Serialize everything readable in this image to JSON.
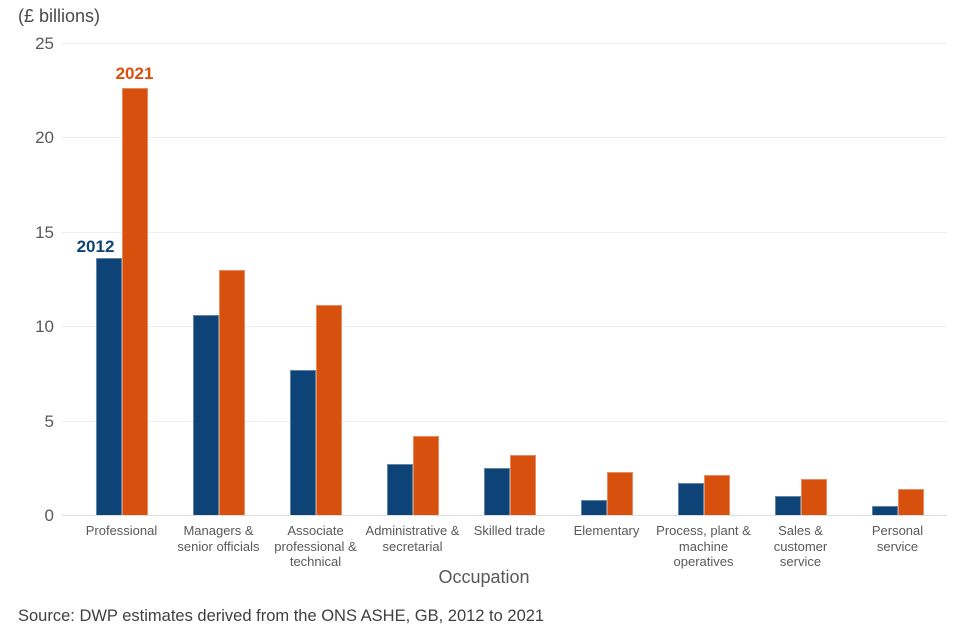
{
  "header": {
    "units_label": "(£ billions)"
  },
  "chart_data": {
    "type": "bar",
    "title": "(£ billions)",
    "xlabel": "Occupation",
    "ylabel": "(£ billions)",
    "ylim": [
      0,
      25
    ],
    "yticks": [
      0,
      5,
      10,
      15,
      20,
      25
    ],
    "grid": true,
    "legend_position": "data labels above first category group",
    "categories": [
      "Professional",
      "Managers &\nsenior officials",
      "Associate\nprofessional &\ntechnical",
      "Administrative &\nsecretarial",
      "Skilled trade",
      "Elementary",
      "Process, plant &\nmachine\noperatives",
      "Sales &\ncustomer\nservice",
      "Personal\nservice"
    ],
    "series": [
      {
        "name": "2012",
        "color": "#0e4377",
        "values": [
          13.6,
          10.6,
          7.7,
          2.7,
          2.5,
          0.8,
          1.7,
          1.0,
          0.5
        ]
      },
      {
        "name": "2021",
        "color": "#d8500d",
        "values": [
          22.6,
          13.0,
          11.1,
          4.2,
          3.2,
          2.3,
          2.1,
          1.9,
          1.4
        ]
      }
    ]
  },
  "footer": {
    "source": "Source: DWP estimates derived from the ONS ASHE, GB, 2012 to 2021"
  },
  "colors": {
    "series_2012": "#0e4377",
    "series_2021": "#d8500d",
    "gridline": "#ececec",
    "axis_line": "#dedede",
    "axis_text": "#595959",
    "source_text": "#404040"
  }
}
